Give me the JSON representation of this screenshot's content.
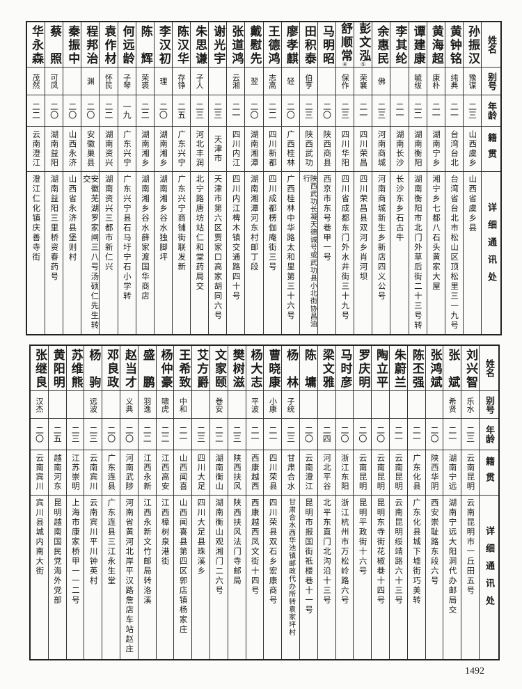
{
  "headers": {
    "name": "姓名",
    "alias": "别号",
    "age": "年龄",
    "origin": "籍贯",
    "address": "详细通讯处"
  },
  "page_number": "1492",
  "top_table": [
    {
      "name": "孙振汉",
      "alias": "豫谋",
      "age": "二三",
      "origin": "山西虞乡",
      "address": "山西省虞乡县"
    },
    {
      "name": "黄钟铭",
      "alias": "纯典",
      "age": "二一",
      "origin": "台湾台北",
      "address": "台湾省台北市松山区顶松里三一九号"
    },
    {
      "name": "黄海超",
      "alias": "康朴",
      "age": "二一",
      "origin": "湖南宁乡",
      "address": "湘宁乡七都八石头黄家大屋"
    },
    {
      "name": "谭建康",
      "alias": "毓绂",
      "age": "二二",
      "origin": "湖南衡阳",
      "address": "湖南衡阳市北门外草后街二十三号转"
    },
    {
      "name": "李其纶",
      "alias": "",
      "age": "二一",
      "origin": "湖南长沙",
      "address": "长沙东乡石古牛"
    },
    {
      "name": "余惠民",
      "alias": "佛",
      "age": "二三",
      "origin": "河南商城",
      "address": "河南商城新生乡新店四义公号"
    },
    {
      "name": "彭文泓",
      "note": "⑤",
      "alias": "荣襄",
      "age": "二一",
      "origin": "四川荣昌",
      "address": "四川荣昌县双河乡肖河坝"
    },
    {
      "name": "舒顺常",
      "note": "④",
      "alias": "保作",
      "age": "二三",
      "origin": "四川华阳",
      "address": "四川省成都东门外水井街三十九号"
    },
    {
      "name": "马明昭",
      "alias": "",
      "age": "二〇",
      "origin": "陕西商县",
      "address": "西京市东号巷甲一号"
    },
    {
      "name": "田积泰",
      "alias": "伯亨",
      "age": "二三",
      "origin": "陕西武功",
      "address": "陕西武功长凝天德诚号或武功县小北街协昌油行"
    },
    {
      "name": "廖孝麒",
      "alias": "轻",
      "age": "二〇",
      "origin": "广西桂林",
      "address": "广西桂林中华路太和里第三十六号"
    },
    {
      "name": "王德鸿",
      "alias": "志高",
      "age": "二二",
      "origin": "四川新都",
      "address": "四川成都楞伽庵街三号"
    },
    {
      "name": "戴慰先",
      "alias": "翌",
      "age": "二〇",
      "origin": "湖南湘潭",
      "address": "湖南湘潭河东村邮丁段"
    },
    {
      "name": "张道鸿",
      "alias": "云湘",
      "age": "二一",
      "origin": "四川内江",
      "address": "四川内江椑木镇交通路四十号"
    },
    {
      "name": "谢光宇",
      "alias": "",
      "age": "二三",
      "origin": "天津市",
      "address": "天津市第六区贾家口高家胡同六号"
    },
    {
      "name": "朱思谦",
      "alias": "子人",
      "age": "二三",
      "origin": "河北丰润",
      "address": "北宁路唐坊站仁和堂药局交"
    },
    {
      "name": "陈汉华",
      "alias": "存铮",
      "age": "二五",
      "origin": "广东兴宁",
      "address": "广东兴宁商铺街联发新"
    },
    {
      "name": "李汉初",
      "alias": "理",
      "age": "二〇",
      "origin": "湖南湘乡",
      "address": "湖南湘乡谷水独脚坪"
    },
    {
      "name": "陈辉",
      "alias": "荣裘",
      "age": "二二",
      "origin": "湖南湘乡",
      "address": "湖南湘乡谷水薛家渡国华商店"
    },
    {
      "name": "何远龄",
      "alias": "子琴",
      "age": "一九",
      "origin": "广东兴宁",
      "address": "广东兴宁县石马圩宁石小学转"
    },
    {
      "name": "袁作材",
      "alias": "怀民",
      "age": "二二",
      "origin": "湖南资兴",
      "address": "湖南资兴三都市新仁兴"
    },
    {
      "name": "程邦治",
      "alias": "渊",
      "age": "二〇",
      "origin": "安徽巢县",
      "address": "安徽芜湖罗家闸三八号汤硕仁先生转交"
    },
    {
      "name": "秦振中",
      "alias": "",
      "age": "二〇",
      "origin": "山西永济",
      "address": "山西省永济县堡则村"
    },
    {
      "name": "蔡照",
      "alias": "可凤",
      "age": "二〇",
      "origin": "湖南益阳",
      "address": "湖南益阳三里桥资春药号"
    },
    {
      "name": "华永森",
      "alias": "茂然",
      "age": "二二",
      "origin": "云南澄江",
      "address": "澄江仁化镇庆善寺街"
    }
  ],
  "bottom_table": [
    {
      "name": "刘兴智",
      "alias": "乐水",
      "age": "二三",
      "origin": "云南昆明",
      "address": "云南昆明市一丘田五号"
    },
    {
      "name": "张斌",
      "alias": "希贤",
      "age": "二一",
      "origin": "湖南宁远",
      "address": "湖南宁远大阳洞代办邮局交"
    },
    {
      "name": "张鸿斌",
      "alias": "",
      "age": "二〇",
      "origin": "陕西华阴",
      "address": "西安崇耻路东段六号"
    },
    {
      "name": "陈丕强",
      "alias": "",
      "age": "二一",
      "origin": "广东化县",
      "address": "广东化县城下墟街巧美转"
    },
    {
      "name": "朱蔚兰",
      "alias": "",
      "age": "二一",
      "origin": "云南昆明",
      "address": "云南昆明绥靖路六十三号"
    },
    {
      "name": "陶立平",
      "alias": "",
      "age": "二〇",
      "origin": "云南昆明",
      "address": "昆明东寺街花椒巷十四号"
    },
    {
      "name": "罗庆明",
      "alias": "",
      "age": "二〇",
      "origin": "云南昆明",
      "address": "昆明平政街十六号"
    },
    {
      "name": "马时彦",
      "alias": "",
      "age": "二〇",
      "origin": "浙江东阳",
      "address": "浙江杭州市万松岭路六号"
    },
    {
      "name": "梁文雅",
      "alias": "",
      "age": "二四",
      "origin": "河北平谷",
      "address": "北平东直门北沟沿十三号"
    },
    {
      "name": "陈墉",
      "alias": "",
      "age": "二〇",
      "origin": "云南澄江",
      "address": "昆明市报国街祗楼巷十一号"
    },
    {
      "name": "杨林",
      "alias": "子统",
      "age": "二三",
      "origin": "甘肃合水",
      "address": "甘肃合水西华池镇邮政代办所转袁家坪村"
    },
    {
      "name": "曹晓康",
      "alias": "小康",
      "age": "二一",
      "origin": "四川荣县",
      "address": "四川荣县双石乡宏康商号"
    },
    {
      "name": "杨大志",
      "alias": "平波",
      "age": "二一",
      "origin": "西康越西",
      "address": "西康越西凤文街十四号"
    },
    {
      "name": "樊树滋",
      "alias": "",
      "age": "二三",
      "origin": "陕西扶风",
      "address": "陕西扶风法门寺邮局"
    },
    {
      "name": "文家颐",
      "alias": "巻安",
      "age": "二二",
      "origin": "湖南衡山",
      "address": "湖南衡山观湘门二六号"
    },
    {
      "name": "艾方爵",
      "alias": "",
      "age": "二三",
      "origin": "四川大足",
      "address": "四川大足县珠溪乡"
    },
    {
      "name": "王希致",
      "alias": "中和",
      "age": "二一",
      "origin": "山西闻喜",
      "address": "山西闻喜县第四区郭店镇杨家庄"
    },
    {
      "name": "杨仲豪",
      "alias": "啸虎",
      "age": "二二",
      "origin": "江西高安",
      "address": "江西樟树泉港街"
    },
    {
      "name": "盛鹏",
      "alias": "羽逸",
      "age": "二二",
      "origin": "江西永新",
      "address": "江西永新文竹邮局转洛溪"
    },
    {
      "name": "赵当才",
      "alias": "义典",
      "age": "二〇",
      "origin": "河南武陟",
      "address": "河南省黄河北岸平汉路詹店车站赵庄"
    },
    {
      "name": "邓良政",
      "alias": "",
      "age": "二〇",
      "origin": "广东连县",
      "address": "广东连县三江永生堂"
    },
    {
      "name": "杨驹",
      "alias": "远波",
      "age": "二三",
      "origin": "云南宾川",
      "address": "云南宾川平川钟英村"
    },
    {
      "name": "苏维熊",
      "alias": "",
      "age": "二三",
      "origin": "江苏崇明",
      "address": "上海市康家桥甲一一二号"
    },
    {
      "name": "黄阳明",
      "alias": "",
      "age": "二五",
      "origin": "越南河东",
      "address": "昆明越南国民党海外党部"
    },
    {
      "name": "张继良",
      "alias": "汉杰",
      "age": "二〇",
      "origin": "云南宾川",
      "address": "宾川县城内南大街"
    }
  ]
}
